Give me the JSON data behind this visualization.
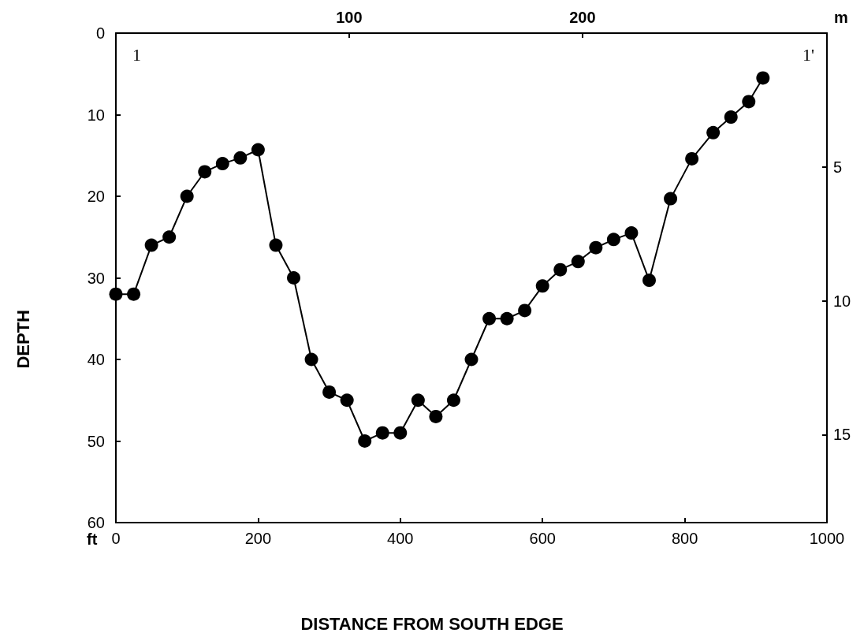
{
  "chart_data": {
    "type": "line",
    "xlabel": "DISTANCE FROM SOUTH EDGE",
    "ylabel": "DEPTH",
    "x": [
      0,
      25,
      50,
      75,
      100,
      125,
      150,
      175,
      200,
      225,
      250,
      275,
      300,
      325,
      350,
      375,
      400,
      425,
      450,
      475,
      500,
      525,
      550,
      575,
      600,
      625,
      650,
      675,
      700,
      725,
      750,
      780,
      810,
      840,
      865,
      890,
      910
    ],
    "series": [
      {
        "color": "#000000",
        "values": [
          32,
          32,
          26,
          25,
          20,
          17,
          16,
          15.3,
          14.3,
          26,
          30,
          40,
          44,
          45,
          50,
          49,
          49,
          45,
          47,
          45,
          40,
          35,
          35,
          34,
          31,
          29,
          28,
          26.3,
          25.3,
          24.5,
          30.3,
          20.3,
          15.4,
          12.2,
          10.3,
          8.4,
          5.5
        ]
      }
    ],
    "marker": "circle",
    "line_style": "solid",
    "grid": false,
    "xlim": [
      0,
      1000
    ],
    "xticks": [
      0,
      200,
      400,
      600,
      800,
      1000
    ],
    "ylim": [
      60,
      0
    ],
    "yticks": [
      0,
      10,
      20,
      30,
      40,
      50,
      60
    ],
    "x2lim": [
      0,
      304.8
    ],
    "x2ticks": [
      100,
      200
    ],
    "y2lim": [
      18.29,
      0
    ],
    "y2ticks": [
      5,
      10,
      15
    ],
    "annotations": [
      "1",
      "1'",
      "ft",
      "m"
    ]
  }
}
